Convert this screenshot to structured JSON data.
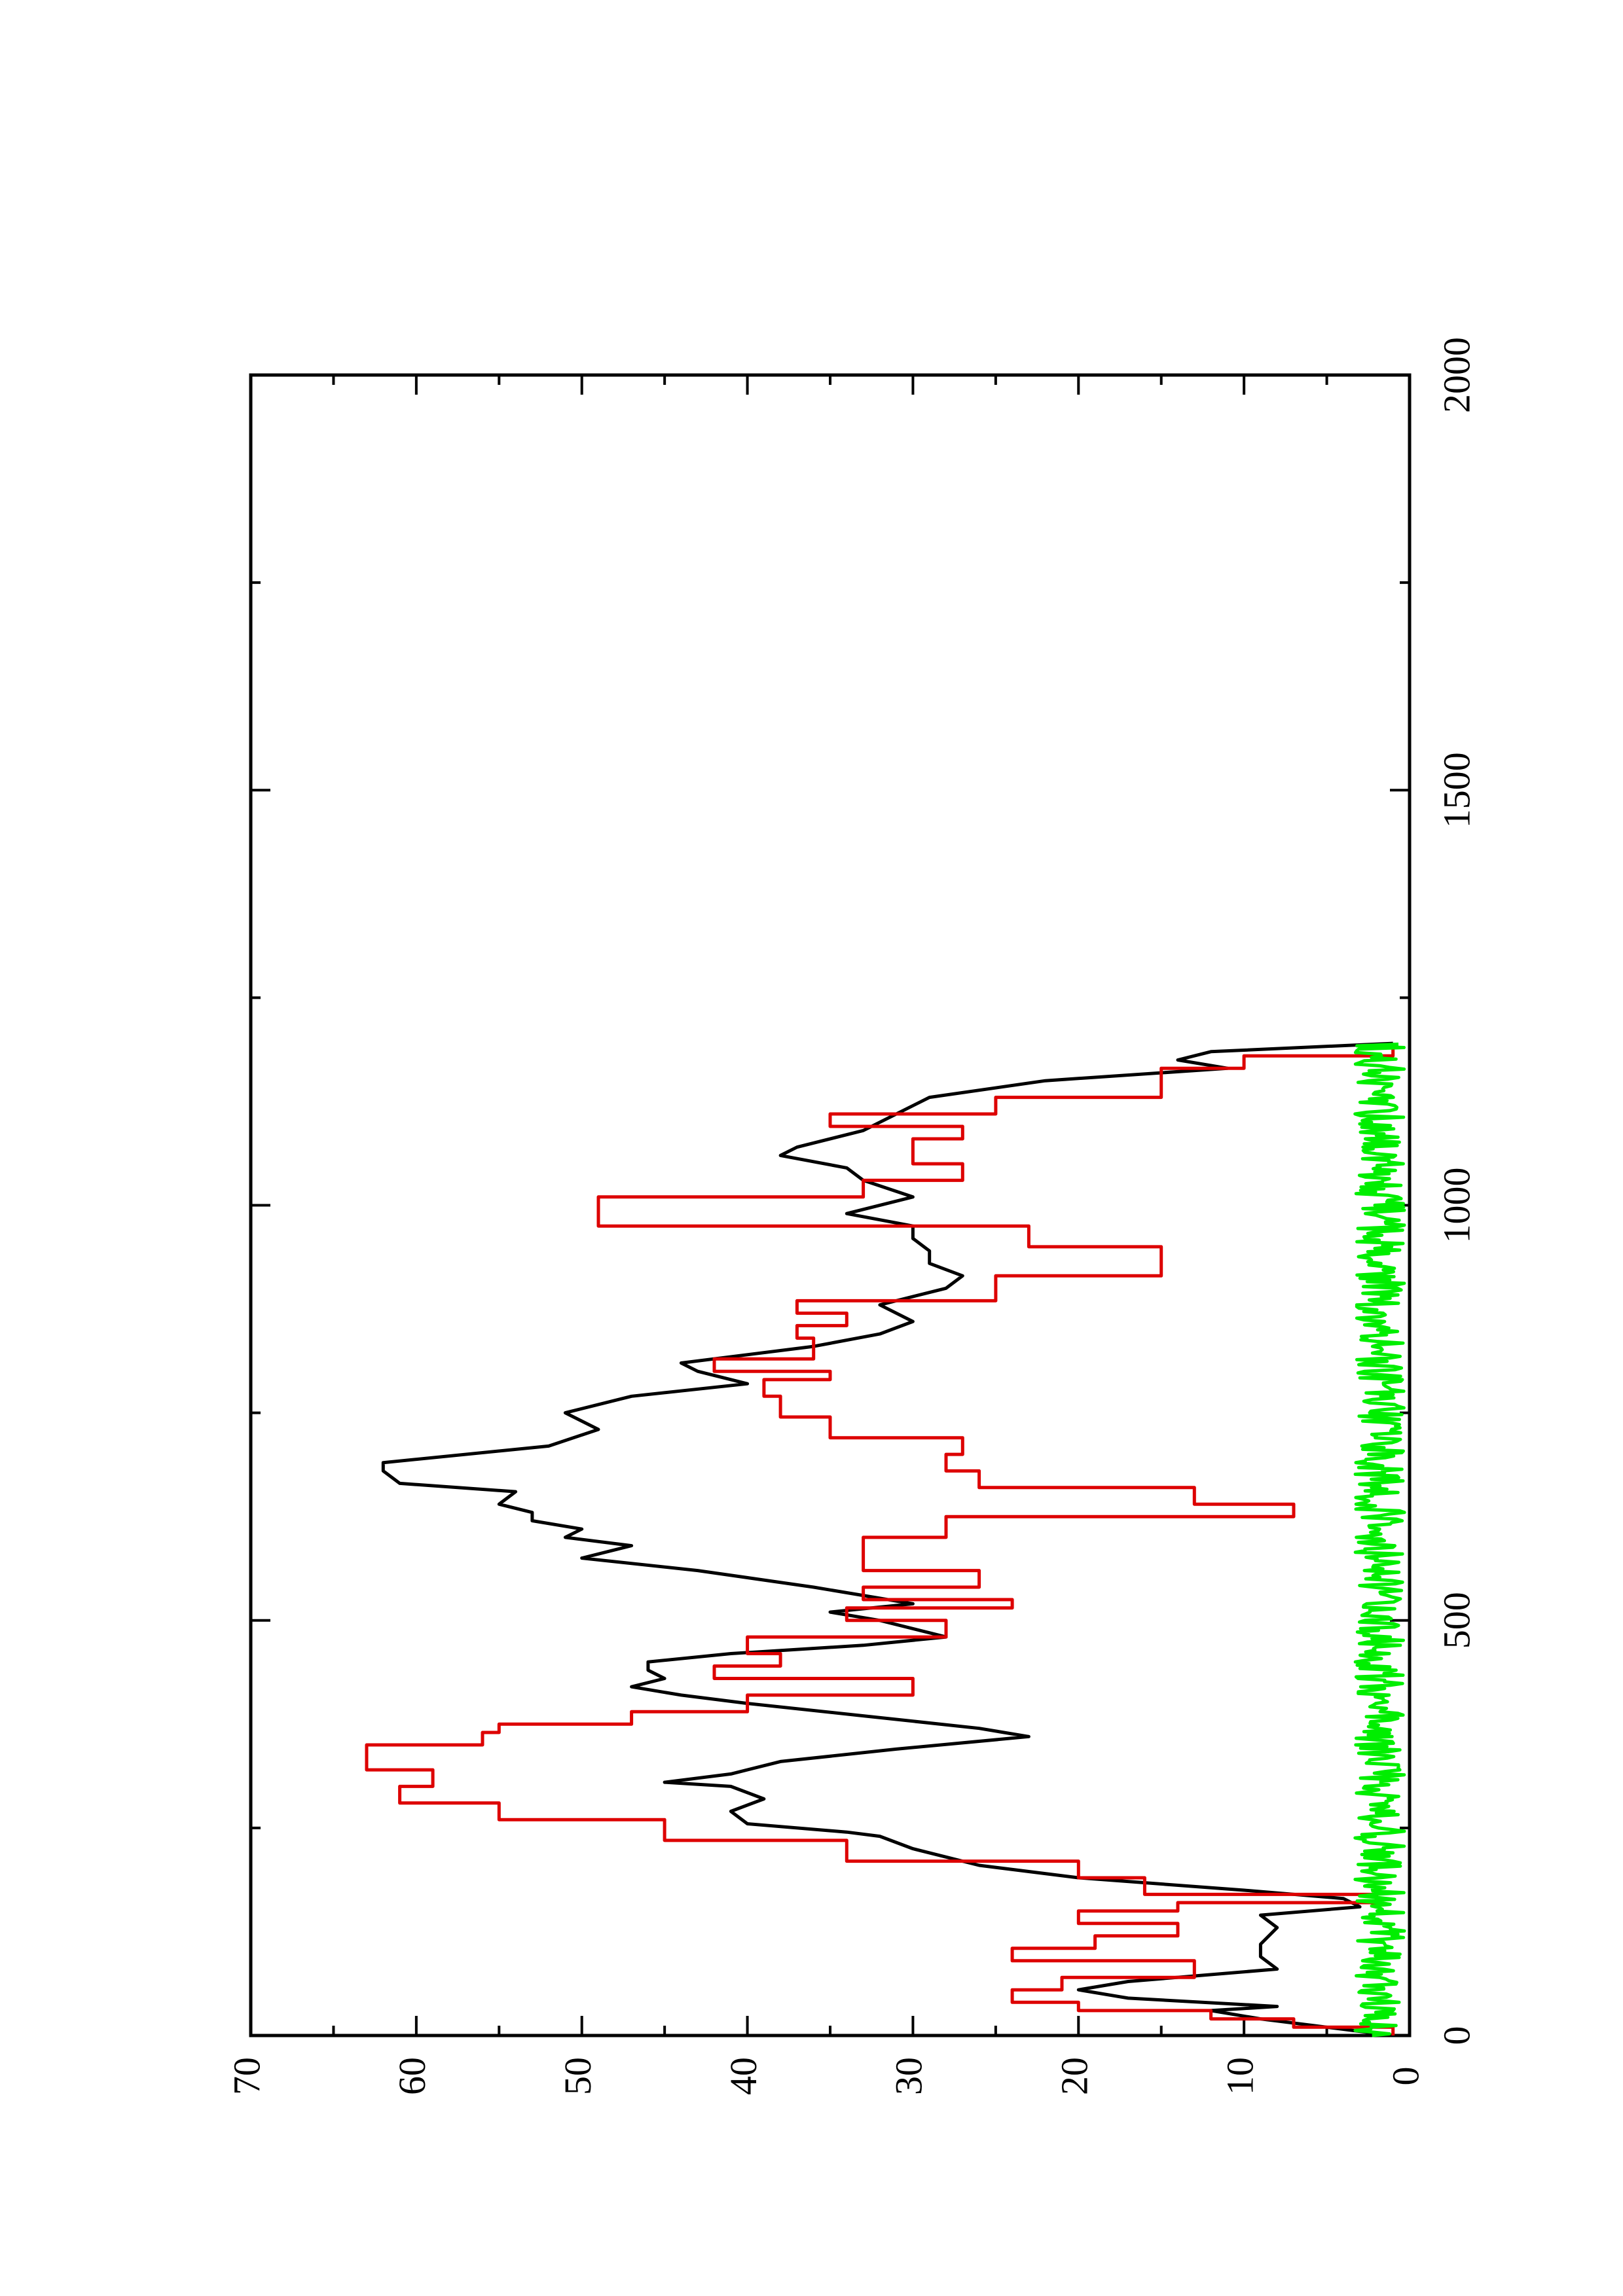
{
  "chart_data": {
    "type": "line",
    "orientation": "rotated-90-ccw",
    "title": "",
    "xlabel": "",
    "ylabel": "",
    "xlim": [
      0,
      2000
    ],
    "ylim": [
      0,
      70
    ],
    "grid": false,
    "legend": "none",
    "x_ticks_major": [
      "0",
      "500",
      "1000",
      "1500",
      "2000"
    ],
    "y_ticks_major": [
      "0",
      "10",
      "20",
      "30",
      "40",
      "50",
      "60",
      "70"
    ],
    "series": [
      {
        "color": "#000000",
        "style": "line",
        "x": [
          0,
          10,
          20,
          30,
          35,
          45,
          55,
          65,
          80,
          95,
          110,
          130,
          145,
          155,
          165,
          175,
          190,
          205,
          225,
          240,
          245,
          255,
          270,
          285,
          300,
          305,
          315,
          330,
          345,
          360,
          370,
          385,
          400,
          410,
          420,
          430,
          440,
          450,
          460,
          470,
          480,
          500,
          510,
          520,
          540,
          560,
          575,
          590,
          600,
          610,
          620,
          630,
          640,
          655,
          665,
          680,
          690,
          710,
          730,
          750,
          770,
          785,
          800,
          810,
          830,
          845,
          860,
          880,
          900,
          915,
          930,
          945,
          960,
          975,
          990,
          1010,
          1030,
          1045,
          1060,
          1070,
          1090,
          1110,
          1130,
          1150,
          1165,
          1175,
          1185,
          1195
        ],
        "y": [
          1,
          5,
          9,
          12,
          8,
          17,
          20,
          17,
          8,
          9,
          9,
          8,
          9,
          3,
          4,
          10,
          20,
          26,
          30,
          32,
          34,
          40,
          41,
          39,
          41,
          45,
          41,
          38,
          31,
          23,
          26,
          33,
          40,
          44,
          47,
          45,
          46,
          46,
          41,
          33,
          28,
          32,
          35,
          30,
          36,
          43,
          50,
          47,
          51,
          50,
          53,
          53,
          55,
          54,
          61,
          62,
          62,
          52,
          49,
          51,
          47,
          40,
          43,
          44,
          36,
          32,
          30,
          32,
          28,
          27,
          29,
          29,
          30,
          30,
          34,
          30,
          33,
          34,
          38,
          37,
          33,
          31,
          29,
          22,
          11,
          14,
          12,
          1
        ]
      },
      {
        "color": "#dd0000",
        "style": "step",
        "x": [
          0,
          10,
          20,
          30,
          40,
          55,
          70,
          90,
          105,
          120,
          135,
          150,
          160,
          170,
          190,
          210,
          235,
          260,
          280,
          300,
          320,
          350,
          365,
          375,
          390,
          410,
          430,
          445,
          460,
          480,
          500,
          515,
          525,
          540,
          560,
          575,
          600,
          625,
          640,
          660,
          680,
          700,
          720,
          745,
          770,
          790,
          800,
          815,
          840,
          855,
          870,
          885,
          900,
          915,
          930,
          950,
          975,
          990,
          1010,
          1030,
          1050,
          1070,
          1080,
          1095,
          1110,
          1130,
          1150,
          1165,
          1180,
          1195
        ],
        "y": [
          1,
          7,
          12,
          20,
          24,
          21,
          13,
          24,
          19,
          14,
          20,
          14,
          2,
          16,
          20,
          34,
          45,
          55,
          61,
          59,
          63,
          56,
          55,
          47,
          40,
          30,
          42,
          38,
          40,
          28,
          34,
          24,
          33,
          26,
          33,
          33,
          28,
          7,
          13,
          26,
          28,
          27,
          35,
          38,
          39,
          35,
          42,
          36,
          37,
          34,
          37,
          25,
          25,
          15,
          15,
          23,
          49,
          49,
          33,
          27,
          30,
          30,
          27,
          35,
          25,
          15,
          15,
          10,
          1,
          1
        ]
      },
      {
        "color": "#00ee00",
        "style": "noise",
        "x_range": [
          0,
          1195
        ],
        "y_mean": 1.5,
        "y_range": [
          0,
          4
        ]
      }
    ]
  }
}
